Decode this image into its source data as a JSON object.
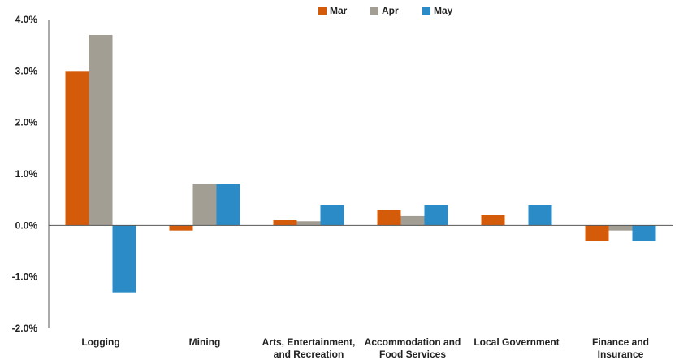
{
  "chart_data": {
    "type": "bar",
    "categories": [
      [
        "Logging"
      ],
      [
        "Mining"
      ],
      [
        "Arts, Entertainment,",
        "and Recreation"
      ],
      [
        "Accommodation and",
        "Food Services"
      ],
      [
        "Local Government"
      ],
      [
        "Finance and",
        "Insurance"
      ]
    ],
    "series": [
      {
        "name": "Mar",
        "color": "#D45B0A",
        "values": [
          3.0,
          -0.1,
          0.1,
          0.3,
          0.2,
          -0.3
        ]
      },
      {
        "name": "Apr",
        "color": "#A39E94",
        "values": [
          3.7,
          0.8,
          0.08,
          0.18,
          0.0,
          -0.1
        ]
      },
      {
        "name": "May",
        "color": "#2A8BC6",
        "values": [
          -1.3,
          0.8,
          0.4,
          0.4,
          0.4,
          -0.3
        ]
      }
    ],
    "y_ticks": [
      "-2.0%",
      "-1.0%",
      "0.0%",
      "1.0%",
      "2.0%",
      "3.0%",
      "4.0%"
    ],
    "ylim": [
      -2.0,
      4.0
    ],
    "grid": false,
    "legend_position": "top-center"
  }
}
